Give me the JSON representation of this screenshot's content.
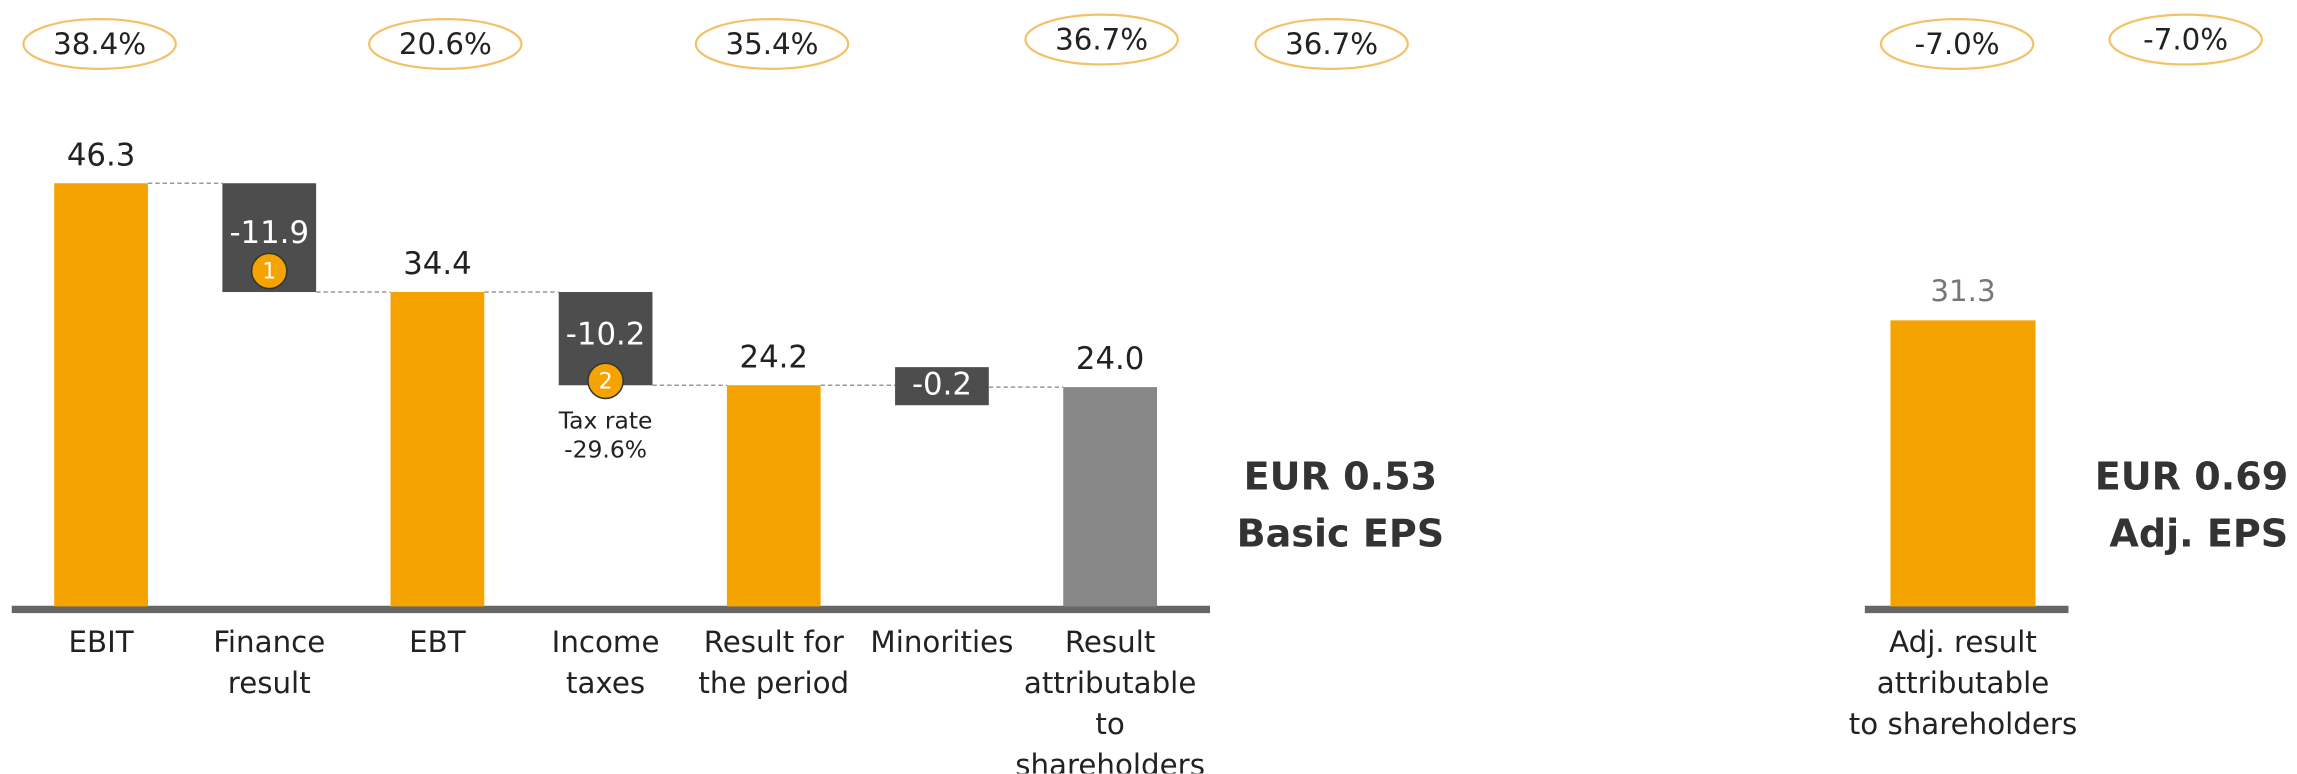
{
  "badges": [
    "38.4%",
    "20.6%",
    "35.4%",
    "36.7%",
    "36.7%",
    "-7.0%",
    "-7.0%"
  ],
  "chart_data": [
    {
      "type": "waterfall",
      "categories": [
        [
          "EBIT"
        ],
        [
          "Finance",
          "result"
        ],
        [
          "EBT"
        ],
        [
          "Income",
          "taxes"
        ],
        [
          "Result for",
          "the period"
        ],
        [
          "Minorities"
        ],
        [
          "Result",
          "attributable",
          "to",
          "shareholders"
        ]
      ],
      "values": [
        46.3,
        -11.9,
        34.4,
        -10.2,
        24.2,
        -0.2,
        24.0
      ],
      "value_labels": [
        "46.3",
        "-11.9",
        "34.4",
        "-10.2",
        "24.2",
        "-0.2",
        "24.0"
      ],
      "totals": [
        true,
        false,
        true,
        false,
        true,
        false,
        true
      ],
      "colors": [
        "#f5a300",
        "#4d4d4d",
        "#f5a300",
        "#4d4d4d",
        "#f5a300",
        "#4d4d4d",
        "#878787"
      ],
      "notes": [
        "1",
        "2"
      ],
      "tax_note": [
        "Tax rate",
        "-29.6%"
      ],
      "eps": [
        "EUR 0.53",
        "Basic EPS"
      ]
    },
    {
      "type": "bar",
      "categories": [
        [
          "Adj. result",
          "attributable",
          "to shareholders"
        ]
      ],
      "values": [
        31.3
      ],
      "color": "#f5a300",
      "eps": [
        "EUR 0.69",
        "Adj. EPS"
      ]
    }
  ]
}
